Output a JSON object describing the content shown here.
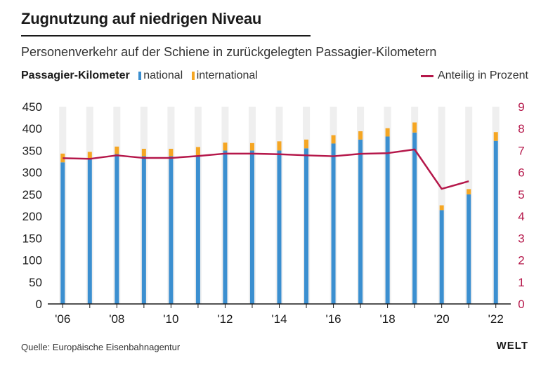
{
  "title": "Zugnutzung auf niedrigen Niveau",
  "subtitle": "Personenverkehr auf der Schiene in zurückgelegten Passagier-Kilometern",
  "legend": {
    "title": "Passagier-Kilometer",
    "national": "national",
    "international": "international",
    "line": "Anteilig in Prozent"
  },
  "colors": {
    "national": "#3b8fd0",
    "international": "#f5a623",
    "line": "#b5174a",
    "bg_column": "#efefef",
    "right_axis": "#b5174a"
  },
  "source": "Quelle: Europäische Eisenbahnagentur",
  "brand": "WELT",
  "chart_data": {
    "type": "bar",
    "stacked": true,
    "title": "Zugnutzung auf niedrigen Niveau",
    "ylabel": "Passagier-Kilometer",
    "y2label": "Anteilig in Prozent",
    "ylim": [
      0,
      450
    ],
    "y2lim": [
      0,
      9
    ],
    "yticks": [
      0,
      50,
      100,
      150,
      200,
      250,
      300,
      350,
      400,
      450
    ],
    "y2ticks": [
      0,
      1,
      2,
      3,
      4,
      5,
      6,
      7,
      8,
      9
    ],
    "years": [
      2006,
      2007,
      2008,
      2009,
      2010,
      2011,
      2012,
      2013,
      2014,
      2015,
      2016,
      2017,
      2018,
      2019,
      2020,
      2021,
      2022
    ],
    "xtick_labels": [
      "'06",
      "'08",
      "'10",
      "'12",
      "'14",
      "'16",
      "'18",
      "'20",
      "'22"
    ],
    "xtick_years": [
      2006,
      2008,
      2010,
      2012,
      2014,
      2016,
      2018,
      2020,
      2022
    ],
    "series": [
      {
        "name": "national",
        "values": [
          323,
          330,
          342,
          337,
          337,
          339,
          350,
          350,
          350,
          355,
          366,
          375,
          382,
          391,
          214,
          250,
          372
        ]
      },
      {
        "name": "international",
        "values": [
          20,
          17,
          17,
          17,
          17,
          19,
          18,
          17,
          21,
          20,
          19,
          19,
          19,
          23,
          11,
          12,
          20
        ]
      }
    ],
    "line": {
      "name": "Anteilig in Prozent",
      "values": [
        6.65,
        6.62,
        6.78,
        6.66,
        6.66,
        6.75,
        6.86,
        6.86,
        6.83,
        6.78,
        6.74,
        6.85,
        6.88,
        7.05,
        5.25,
        5.6,
        null
      ]
    }
  }
}
